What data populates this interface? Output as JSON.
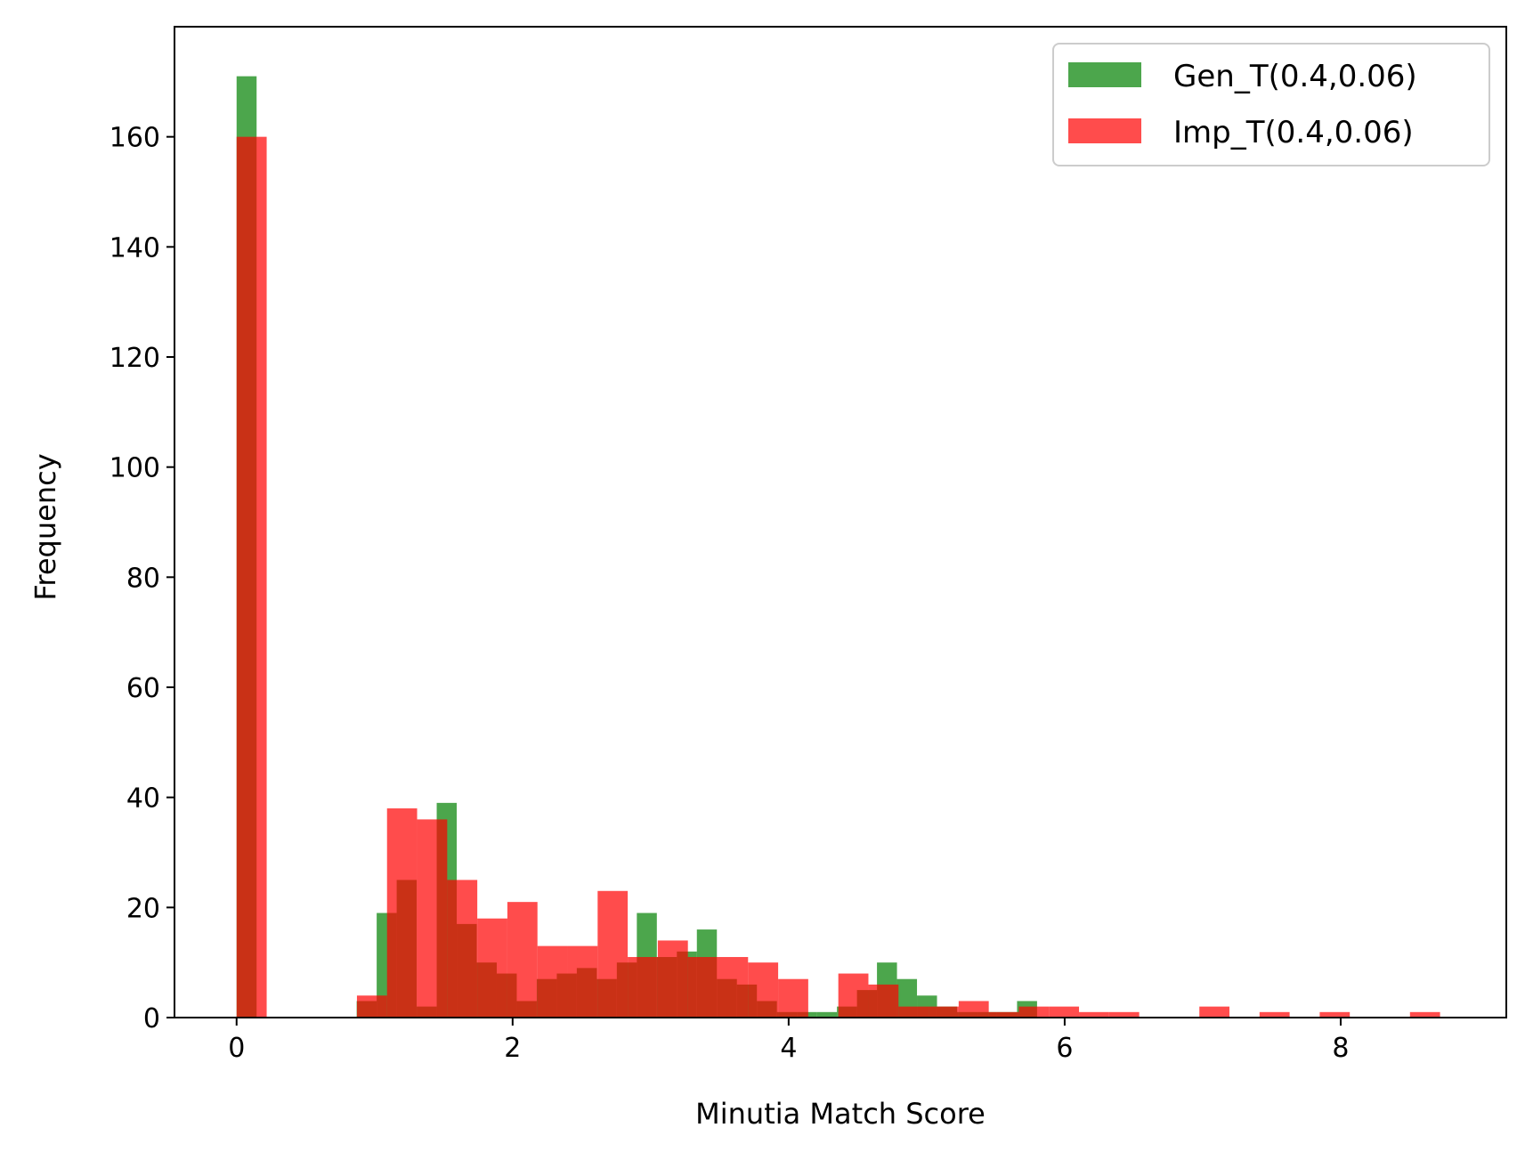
{
  "chart_data": {
    "type": "histogram",
    "xlabel": "Minutia Match Score",
    "ylabel": "Frequency",
    "xlim": [
      -0.45,
      9.2
    ],
    "ylim": [
      0,
      180
    ],
    "xticks": [
      0,
      2,
      4,
      6,
      8
    ],
    "yticks": [
      0,
      20,
      40,
      60,
      80,
      100,
      120,
      140,
      160
    ],
    "grid": false,
    "legend_position": "top-right",
    "series": [
      {
        "name": "Gen_T(0.4,0.06)",
        "color": "#008000",
        "opacity": 0.7,
        "bin_width": 0.145,
        "bins": [
          {
            "x": 0.0,
            "count": 171
          },
          {
            "x": 0.87,
            "count": 3
          },
          {
            "x": 1.015,
            "count": 19
          },
          {
            "x": 1.16,
            "count": 25
          },
          {
            "x": 1.305,
            "count": 2
          },
          {
            "x": 1.45,
            "count": 39
          },
          {
            "x": 1.595,
            "count": 17
          },
          {
            "x": 1.74,
            "count": 10
          },
          {
            "x": 1.885,
            "count": 8
          },
          {
            "x": 2.03,
            "count": 3
          },
          {
            "x": 2.175,
            "count": 7
          },
          {
            "x": 2.32,
            "count": 8
          },
          {
            "x": 2.465,
            "count": 9
          },
          {
            "x": 2.61,
            "count": 7
          },
          {
            "x": 2.755,
            "count": 10
          },
          {
            "x": 2.9,
            "count": 19
          },
          {
            "x": 3.045,
            "count": 11
          },
          {
            "x": 3.19,
            "count": 12
          },
          {
            "x": 3.335,
            "count": 16
          },
          {
            "x": 3.48,
            "count": 7
          },
          {
            "x": 3.625,
            "count": 6
          },
          {
            "x": 3.77,
            "count": 3
          },
          {
            "x": 3.915,
            "count": 1
          },
          {
            "x": 4.06,
            "count": 1
          },
          {
            "x": 4.205,
            "count": 1
          },
          {
            "x": 4.35,
            "count": 2
          },
          {
            "x": 4.495,
            "count": 5
          },
          {
            "x": 4.64,
            "count": 10
          },
          {
            "x": 4.785,
            "count": 7
          },
          {
            "x": 4.93,
            "count": 4
          },
          {
            "x": 5.075,
            "count": 2
          },
          {
            "x": 5.22,
            "count": 1
          },
          {
            "x": 5.365,
            "count": 1
          },
          {
            "x": 5.51,
            "count": 1
          },
          {
            "x": 5.655,
            "count": 3
          }
        ]
      },
      {
        "name": "Imp_T(0.4,0.06)",
        "color": "#ff0000",
        "opacity": 0.7,
        "bin_width": 0.218,
        "bins": [
          {
            "x": 0.0,
            "count": 160
          },
          {
            "x": 0.872,
            "count": 4
          },
          {
            "x": 1.09,
            "count": 38
          },
          {
            "x": 1.308,
            "count": 36
          },
          {
            "x": 1.526,
            "count": 25
          },
          {
            "x": 1.744,
            "count": 18
          },
          {
            "x": 1.962,
            "count": 21
          },
          {
            "x": 2.18,
            "count": 13
          },
          {
            "x": 2.398,
            "count": 13
          },
          {
            "x": 2.616,
            "count": 23
          },
          {
            "x": 2.834,
            "count": 11
          },
          {
            "x": 3.052,
            "count": 14
          },
          {
            "x": 3.27,
            "count": 11
          },
          {
            "x": 3.488,
            "count": 11
          },
          {
            "x": 3.706,
            "count": 10
          },
          {
            "x": 3.924,
            "count": 7
          },
          {
            "x": 4.142,
            "count": 0
          },
          {
            "x": 4.36,
            "count": 8
          },
          {
            "x": 4.578,
            "count": 6
          },
          {
            "x": 4.796,
            "count": 2
          },
          {
            "x": 5.014,
            "count": 2
          },
          {
            "x": 5.232,
            "count": 3
          },
          {
            "x": 5.45,
            "count": 1
          },
          {
            "x": 5.668,
            "count": 2
          },
          {
            "x": 5.886,
            "count": 2
          },
          {
            "x": 6.104,
            "count": 1
          },
          {
            "x": 6.322,
            "count": 1
          },
          {
            "x": 6.54,
            "count": 0
          },
          {
            "x": 6.758,
            "count": 0
          },
          {
            "x": 6.976,
            "count": 2
          },
          {
            "x": 7.194,
            "count": 0
          },
          {
            "x": 7.412,
            "count": 1
          },
          {
            "x": 7.63,
            "count": 0
          },
          {
            "x": 7.848,
            "count": 1
          },
          {
            "x": 8.066,
            "count": 0
          },
          {
            "x": 8.284,
            "count": 0
          },
          {
            "x": 8.502,
            "count": 1
          }
        ]
      }
    ]
  }
}
